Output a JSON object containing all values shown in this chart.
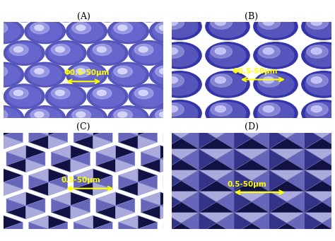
{
  "figure_bg": "#ffffff",
  "panel_bg": "#1a1a5e",
  "label_color": "yellow",
  "label_fontsize": 9,
  "annotation_fontsize": 7.5,
  "annotation_color": "yellow",
  "caption_color": "black",
  "caption_fontsize": 9,
  "captions": [
    "(A)",
    "(B)",
    "(C)",
    "(D)"
  ],
  "annotations": [
    "Φ0.5-50μm",
    "Φ0.5-50μm",
    "0.5-50μm",
    "0.5-50μm"
  ],
  "hex_color_light": "#8888dd",
  "hex_color_mid": "#5555bb",
  "hex_color_dark": "#222266",
  "sphere_color_highlight": "#ccccff",
  "sphere_color_base": "#4444aa",
  "tri_light": "#aaaadd",
  "tri_mid": "#6666bb",
  "tri_dark": "#111144",
  "gap_color": "#2222aa"
}
